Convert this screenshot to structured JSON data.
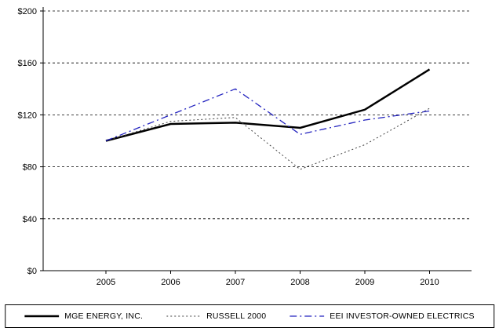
{
  "chart_data": {
    "type": "line",
    "title": "",
    "xlabel": "",
    "ylabel": "",
    "categories": [
      "2005",
      "2006",
      "2007",
      "2008",
      "2009",
      "2010"
    ],
    "series": [
      {
        "name": "MGE ENERGY, INC.",
        "values": [
          100,
          113,
          114,
          110,
          124,
          155
        ],
        "color": "#000000",
        "style": "solid",
        "width": 2.5
      },
      {
        "name": "RUSSELL 2000",
        "values": [
          100,
          115,
          118,
          78,
          97,
          125
        ],
        "color": "#404040",
        "style": "dotted",
        "width": 1
      },
      {
        "name": "EEI INVESTOR-OWNED ELECTRICS",
        "values": [
          100,
          120,
          140,
          105,
          116,
          123
        ],
        "color": "#2323bf",
        "style": "dashdot",
        "width": 1.3
      }
    ],
    "ylim": [
      0,
      200
    ],
    "y_ticks": [
      "$0",
      "$40",
      "$80",
      "$120",
      "$160",
      "$200"
    ],
    "y_tick_values": [
      0,
      40,
      80,
      120,
      160,
      200
    ],
    "grid": true,
    "grid_style": "dashed",
    "legend_position": "bottom",
    "axis_color": "#000000",
    "background_color": "#ffffff"
  }
}
